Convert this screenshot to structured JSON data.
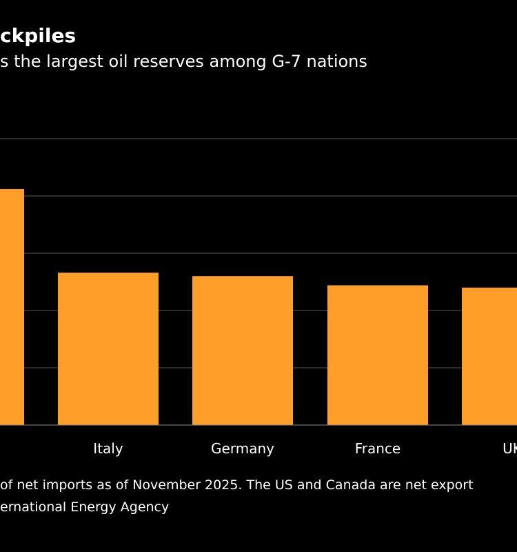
{
  "header": {
    "title": "ckpiles",
    "subtitle": "s the largest oil reserves among G-7 nations"
  },
  "footer": {
    "note": "of net imports as of November 2025. The US and Canada are net export",
    "source": "ernational Energy Agency"
  },
  "colors": {
    "background": "#000000",
    "bar": "#ff9f2a",
    "gridline": "#5a5a5a",
    "text": "#ffffff"
  },
  "chart_data": {
    "type": "bar",
    "categories": [
      "",
      "Italy",
      "Germany",
      "France",
      "UK"
    ],
    "values": [
      206,
      133,
      130,
      122,
      120
    ],
    "ylim": [
      0,
      250
    ],
    "grid": true,
    "legend": "none"
  }
}
